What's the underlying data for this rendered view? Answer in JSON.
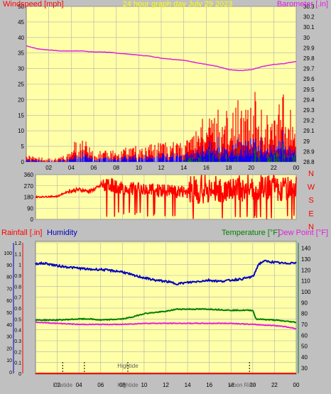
{
  "header": {
    "title": "24 hour graph day   July 29 2023"
  },
  "colors": {
    "background": "#c0c0c0",
    "plot_bg": "#ffffa8",
    "windspeed": "#ff0000",
    "gust": "#ff0000",
    "avg_wind": "#0000ff",
    "wind_green": "#008000",
    "barometer": "#e020e0",
    "direction": "#ff0000",
    "humidity": "#0000c0",
    "temperature": "#008000",
    "dewpoint": "#e020e0",
    "rainfall": "#ff0000",
    "title": "#ffff00",
    "grid": "#b0b0b0"
  },
  "chart_data": [
    {
      "type": "line",
      "name": "wind-barometer",
      "left_label": "Windspeed [mph]",
      "right_label": "Barometer [.in]",
      "ylim_left": [
        0,
        50
      ],
      "left_ticks": [
        "0",
        "5",
        "10",
        "15",
        "20",
        "25",
        "30",
        "35",
        "40",
        "45",
        "50"
      ],
      "ylim_right": [
        28.8,
        30.3
      ],
      "right_ticks": [
        "28.8",
        "28.9",
        "29",
        "29.1",
        "29.2",
        "29.3",
        "29.4",
        "29.5",
        "29.6",
        "29.7",
        "29.8",
        "29.9",
        "30",
        "30.1",
        "30.2",
        "30.3"
      ],
      "x_ticks": [
        "02",
        "04",
        "06",
        "08",
        "10",
        "12",
        "14",
        "16",
        "18",
        "20",
        "22",
        "00"
      ],
      "barometer": {
        "x": [
          0,
          1,
          2,
          3,
          4,
          5,
          6,
          7,
          8,
          9,
          10,
          11,
          12,
          13,
          14,
          15,
          16,
          17,
          18,
          19,
          20,
          21,
          22,
          23,
          24
        ],
        "values": [
          29.92,
          29.89,
          29.88,
          29.87,
          29.87,
          29.87,
          29.86,
          29.86,
          29.85,
          29.84,
          29.83,
          29.82,
          29.8,
          29.79,
          29.78,
          29.76,
          29.74,
          29.72,
          29.69,
          29.68,
          29.69,
          29.72,
          29.74,
          29.75,
          29.77
        ]
      },
      "windspeed_profile": {
        "x": [
          0,
          2,
          4,
          4.5,
          5,
          6,
          8,
          10,
          12,
          14,
          15,
          16,
          18,
          19.5,
          20,
          21,
          22,
          23,
          24
        ],
        "peak": [
          2,
          1,
          3,
          8,
          8,
          3,
          4,
          5,
          6,
          6,
          9,
          10,
          11,
          14,
          17,
          10,
          12,
          14,
          9
        ]
      }
    },
    {
      "type": "line",
      "name": "wind-direction",
      "ylim": [
        0,
        360
      ],
      "left_ticks": [
        "0",
        "90",
        "180",
        "270",
        "360"
      ],
      "right_labels": [
        "N",
        "W",
        "S",
        "E",
        "N"
      ],
      "x": [
        0,
        2,
        3,
        4,
        5,
        6,
        7,
        8,
        10,
        12,
        14,
        16,
        18,
        20,
        22,
        24
      ],
      "values": [
        180,
        185,
        225,
        240,
        225,
        270,
        275,
        250,
        240,
        230,
        220,
        230,
        230,
        250,
        240,
        260
      ]
    },
    {
      "type": "line",
      "name": "rain-humidity-temperature",
      "left_label_rain": "Rainfall [.in]",
      "left_label_humidity": "Humidity",
      "right_label_temp": "Temperature [°F]",
      "right_label_dew": "Dew Point [°F]",
      "rain_ticks": [
        "0",
        "0.1",
        "0.2",
        "0.3",
        "0.4",
        "0.5",
        "0.6",
        "0.7",
        "0.8",
        "0.9",
        "1",
        "1.1",
        "1.2"
      ],
      "ylim_rain": [
        0,
        1.2
      ],
      "humidity_ticks": [
        "0",
        "10",
        "20",
        "30",
        "40",
        "50",
        "60",
        "70",
        "80",
        "90",
        "100"
      ],
      "ylim_humidity": [
        0,
        100
      ],
      "temp_ticks": [
        "30",
        "40",
        "50",
        "60",
        "70",
        "80",
        "90",
        "100",
        "110",
        "120",
        "130",
        "140"
      ],
      "ylim_temp": [
        25,
        145
      ],
      "x_ticks": [
        "02",
        "04",
        "06",
        "08",
        "10",
        "12",
        "14",
        "16",
        "18",
        "20",
        "22",
        "00"
      ],
      "humidity": {
        "x": [
          0,
          1,
          2,
          4,
          5,
          6,
          8,
          9,
          10,
          11,
          12,
          13,
          14,
          15,
          16,
          17,
          18,
          19,
          20,
          20.2,
          20.5,
          21,
          22,
          23,
          24
        ],
        "values": [
          91,
          91,
          89,
          87,
          86,
          86,
          84,
          81,
          79,
          77,
          76,
          74,
          75,
          76,
          77,
          76,
          77,
          78,
          80,
          83,
          90,
          93,
          92,
          91,
          92
        ]
      },
      "temperature": {
        "x": [
          0,
          2,
          4,
          5,
          6,
          8,
          9,
          10,
          11,
          12,
          13,
          14,
          16,
          18,
          20,
          20.3,
          22,
          24
        ],
        "values": [
          74,
          74,
          75,
          75,
          74,
          75,
          77,
          80,
          81,
          82,
          84,
          84,
          84,
          83,
          83,
          75,
          74,
          72
        ]
      },
      "dewpoint": {
        "x": [
          0,
          2,
          4,
          6,
          8,
          10,
          12,
          14,
          16,
          18,
          20,
          22,
          23,
          24
        ],
        "values": [
          72,
          71,
          70,
          70,
          70,
          71,
          71,
          71,
          71,
          71,
          70,
          69,
          68,
          66
        ]
      },
      "rainfall": {
        "x": [
          0,
          23.9,
          24
        ],
        "values": [
          0,
          0,
          0
        ]
      },
      "annotations": [
        {
          "label": "Lowtide",
          "x": 2.5
        },
        {
          "label": "Hightide",
          "x": 8.5
        },
        {
          "label": "Hightide",
          "x": 8.5,
          "y_pos": "mid"
        },
        {
          "label": "Moon Rise",
          "x": 19
        }
      ],
      "marker_lines": [
        2.5,
        4.5,
        8.5,
        19.7
      ]
    }
  ]
}
